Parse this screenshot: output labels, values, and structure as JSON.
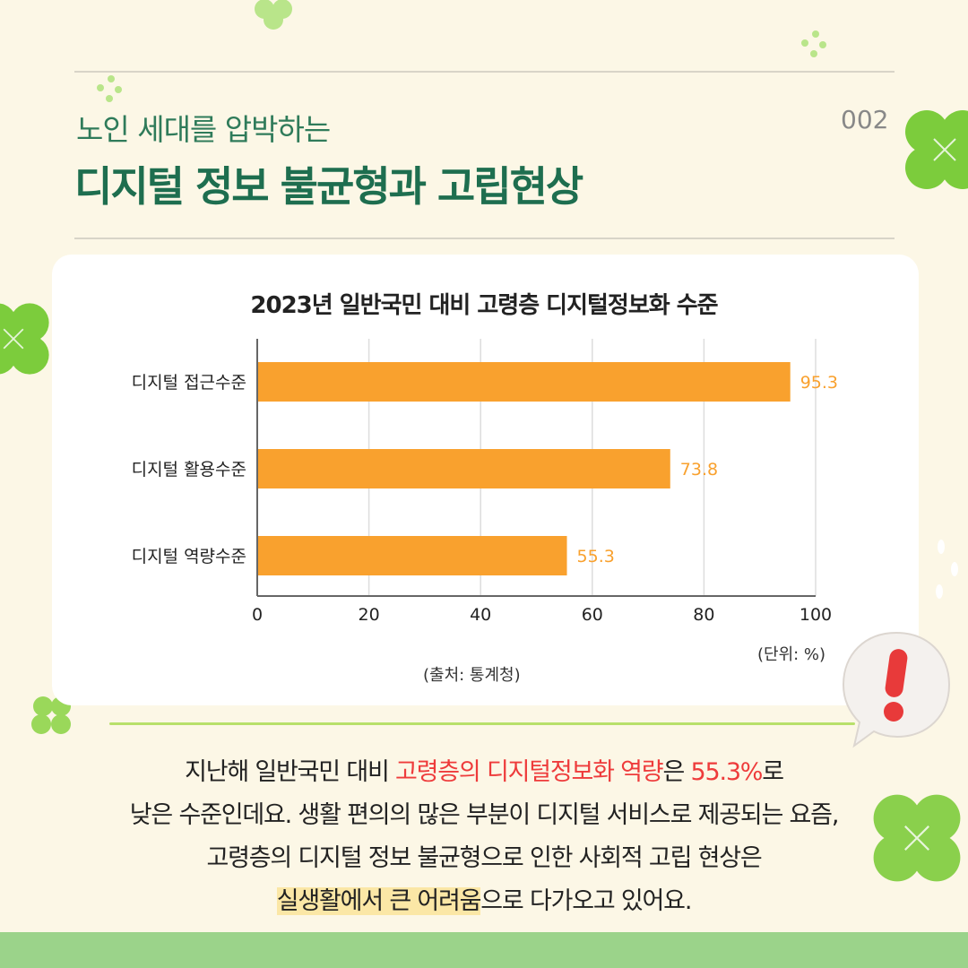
{
  "header": {
    "subtitle": "노인 세대를 압박하는",
    "title": "디지털 정보 불균형과 고립현상",
    "page_number": "002"
  },
  "chart_data": {
    "type": "bar",
    "orientation": "horizontal",
    "title": "2023년 일반국민 대비 고령층 디지털정보화 수준",
    "categories": [
      "디지털 접근수준",
      "디지털 활용수준",
      "디지털 역량수준"
    ],
    "values": [
      95.3,
      73.8,
      55.3
    ],
    "value_labels": [
      "95.3",
      "73.8",
      "55.3"
    ],
    "xlim": [
      0,
      100
    ],
    "xticks": [
      0,
      20,
      40,
      60,
      80,
      100
    ],
    "grid": true,
    "unit": "(단위: %)",
    "source": "(출처: 통계청)",
    "bar_color": "#f9a12e",
    "label_color": "#f9a12e"
  },
  "body": {
    "line1_a": "지난해 일반국민 대비 ",
    "line1_b": "고령층의 디지털정보화 역량",
    "line1_c": "은 ",
    "line1_d": "55.3%",
    "line1_e": "로",
    "line2": "낮은 수준인데요. 생활 편의의 많은 부분이 디지털 서비스로 제공되는 요즘,",
    "line3": "고령층의 디지털 정보 불균형으로 인한 사회적 고립 현상은",
    "line4_a": "실생활에서 큰 어려움",
    "line4_b": "으로 다가오고 있어요."
  },
  "colors": {
    "accent_green": "#1e6e4f",
    "highlight_red": "#ee3b3b",
    "highlight_bg": "#fbe7a6",
    "clover": "#7ccc3c",
    "background": "#fcf7e6"
  },
  "icons": [
    "clover-icon",
    "exclamation-bubble-icon",
    "sparkle-dots-icon"
  ]
}
